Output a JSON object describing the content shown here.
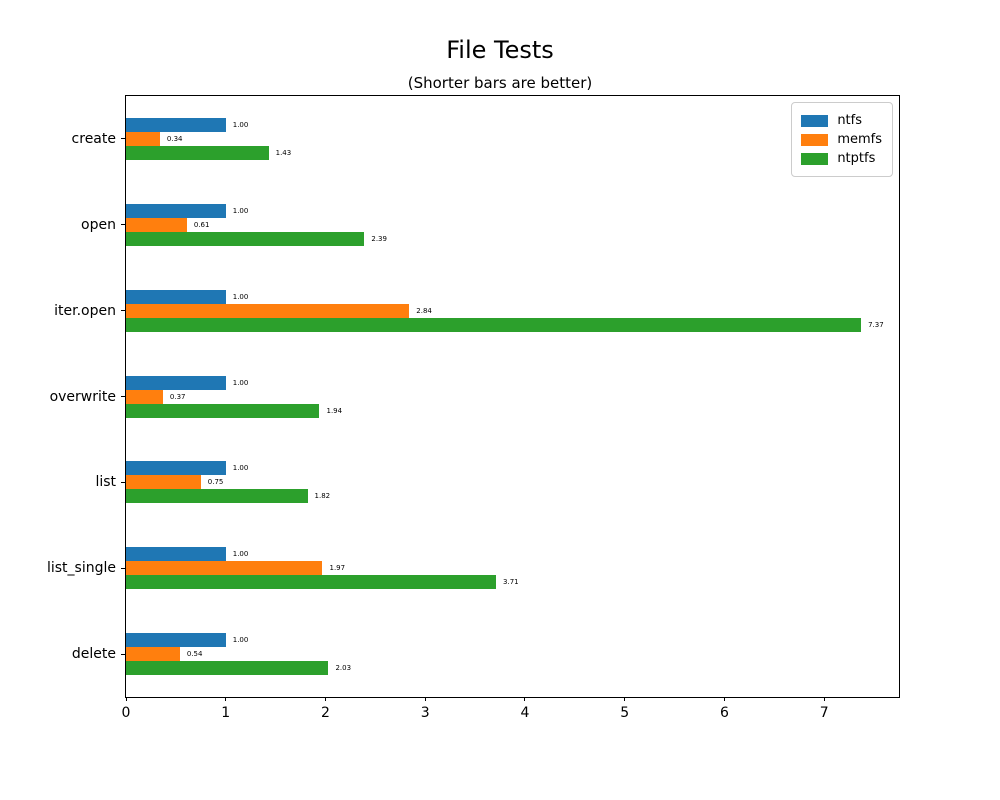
{
  "figure": {
    "title": "File Tests",
    "subtitle": "(Shorter bars are better)"
  },
  "chart_data": {
    "type": "bar",
    "orientation": "horizontal",
    "title": "File Tests",
    "subtitle": "(Shorter bars are better)",
    "categories": [
      "create",
      "open",
      "iter.open",
      "overwrite",
      "list",
      "list_single",
      "delete"
    ],
    "series": [
      {
        "name": "ntfs",
        "color": "#1f77b4",
        "values": [
          1.0,
          1.0,
          1.0,
          1.0,
          1.0,
          1.0,
          1.0
        ]
      },
      {
        "name": "memfs",
        "color": "#ff7f0e",
        "values": [
          0.34,
          0.61,
          2.84,
          0.37,
          0.75,
          1.97,
          0.54
        ]
      },
      {
        "name": "ntptfs",
        "color": "#2ca02c",
        "values": [
          1.43,
          2.39,
          7.37,
          1.94,
          1.82,
          3.71,
          2.03
        ]
      }
    ],
    "bar_value_labels": [
      [
        "1.00",
        "0.34",
        "1.43"
      ],
      [
        "1.00",
        "0.61",
        "2.39"
      ],
      [
        "1.00",
        "2.84",
        "7.37"
      ],
      [
        "1.00",
        "0.37",
        "1.94"
      ],
      [
        "1.00",
        "0.75",
        "1.82"
      ],
      [
        "1.00",
        "1.97",
        "3.71"
      ],
      [
        "1.00",
        "0.54",
        "2.03"
      ]
    ],
    "x_ticks": [
      "0",
      "1",
      "2",
      "3",
      "4",
      "5",
      "6",
      "7"
    ],
    "xlim": [
      0,
      7.75
    ],
    "xlabel": "",
    "ylabel": "",
    "grid": false,
    "legend": {
      "position": "upper right",
      "entries": [
        "ntfs",
        "memfs",
        "ntptfs"
      ]
    }
  }
}
